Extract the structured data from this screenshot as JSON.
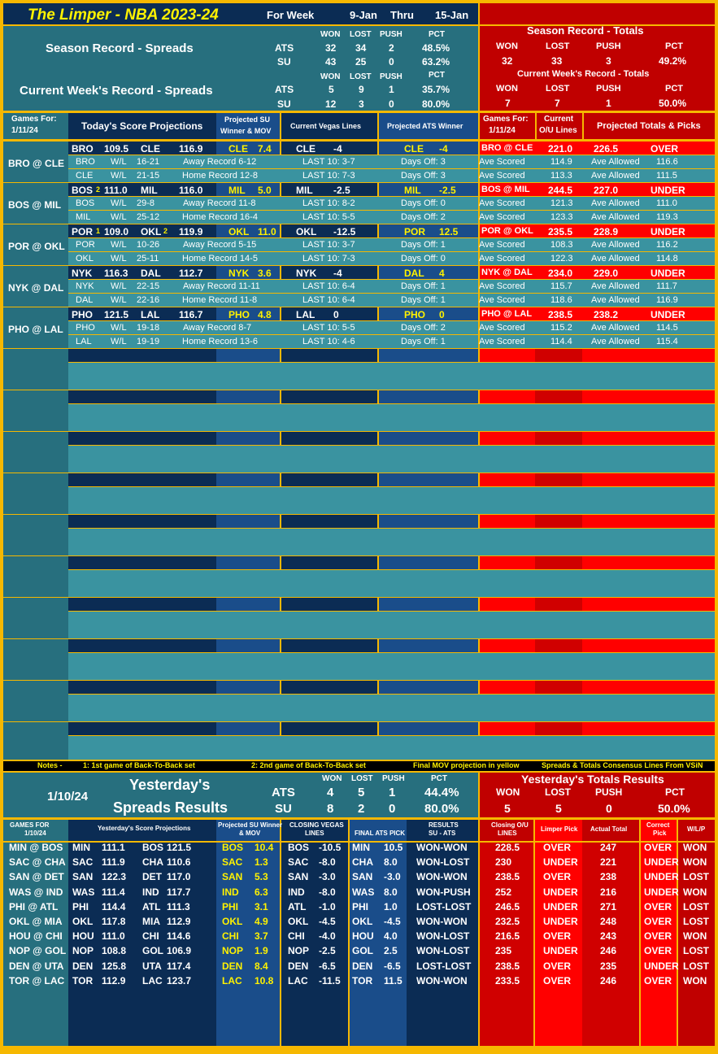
{
  "header": {
    "title": "The Limper - NBA 2023-24",
    "for_week": "For Week",
    "start": "9-Jan",
    "thru": "Thru",
    "end": "15-Jan"
  },
  "season": {
    "spreads_label": "Season Record - Spreads",
    "week_label": "Current Week's Record - Spreads",
    "cols": [
      "WON",
      "LOST",
      "PUSH",
      "PCT"
    ],
    "pct": "PCT",
    "ats": [
      "ATS",
      "32",
      "34",
      "2",
      "48.5%"
    ],
    "su": [
      "SU",
      "43",
      "25",
      "0",
      "63.2%"
    ],
    "week_ats": [
      "ATS",
      "5",
      "9",
      "1",
      "35.7%"
    ],
    "week_su": [
      "SU",
      "12",
      "3",
      "0",
      "80.0%"
    ],
    "totals_label": "Season Record - Totals",
    "totals_vals": [
      "32",
      "33",
      "3",
      "49.2%"
    ],
    "week_totals_label": "Current Week's Record - Totals",
    "week_totals_vals": [
      "7",
      "7",
      "1",
      "50.0%"
    ]
  },
  "today": {
    "games_for": "Games For:",
    "date": "1/11/24",
    "projections": "Today's Score Projections",
    "su_winner": "Projected SU Winner & MOV",
    "vegas": "Current Vegas Lines",
    "ats_winner": "Projected ATS Winner",
    "current_ou": "Current O/U Lines",
    "totals_picks": "Projected Totals & Picks"
  },
  "games": [
    {
      "label": "BRO @ CLE",
      "l1": [
        "BRO",
        "",
        "109.5",
        "CLE",
        "",
        "116.9"
      ],
      "su": [
        "CLE",
        "7.4"
      ],
      "line": [
        "CLE",
        "-4"
      ],
      "ats": [
        "CLE",
        "-4"
      ],
      "tot": [
        "BRO @ CLE",
        "221.0",
        "226.5",
        "OVER"
      ],
      "a": [
        "BRO",
        "W/L",
        "16-21",
        "Away Record 6-12",
        "LAST 10: 3-7",
        "Days Off: 3",
        "Ave Scored",
        "114.9",
        "Ave Allowed",
        "116.6"
      ],
      "b": [
        "CLE",
        "W/L",
        "21-15",
        "Home Record 12-8",
        "LAST 10: 7-3",
        "Days Off: 3",
        "Ave Scored",
        "113.3",
        "Ave Allowed",
        "111.5"
      ]
    },
    {
      "label": "BOS @ MIL",
      "l1": [
        "BOS",
        "2",
        "111.0",
        "MIL",
        "",
        "116.0"
      ],
      "su": [
        "MIL",
        "5.0"
      ],
      "line": [
        "MIL",
        "-2.5"
      ],
      "ats": [
        "MIL",
        "-2.5"
      ],
      "tot": [
        "BOS @ MIL",
        "244.5",
        "227.0",
        "UNDER"
      ],
      "a": [
        "BOS",
        "W/L",
        "29-8",
        "Away Record 11-8",
        "LAST 10: 8-2",
        "Days Off: 0",
        "Ave Scored",
        "121.3",
        "Ave Allowed",
        "111.0"
      ],
      "b": [
        "MIL",
        "W/L",
        "25-12",
        "Home Record 16-4",
        "LAST 10: 5-5",
        "Days Off: 2",
        "Ave Scored",
        "123.3",
        "Ave Allowed",
        "119.3"
      ]
    },
    {
      "label": "POR @ OKL",
      "l1": [
        "POR",
        "1",
        "109.0",
        "OKL",
        "2",
        "119.9"
      ],
      "su": [
        "OKL",
        "11.0"
      ],
      "line": [
        "OKL",
        "-12.5"
      ],
      "ats": [
        "POR",
        "12.5"
      ],
      "tot": [
        "POR @ OKL",
        "235.5",
        "228.9",
        "UNDER"
      ],
      "a": [
        "POR",
        "W/L",
        "10-26",
        "Away Record 5-15",
        "LAST 10: 3-7",
        "Days Off: 1",
        "Ave Scored",
        "108.3",
        "Ave Allowed",
        "116.2"
      ],
      "b": [
        "OKL",
        "W/L",
        "25-11",
        "Home Record 14-5",
        "LAST 10: 7-3",
        "Days Off: 0",
        "Ave Scored",
        "122.3",
        "Ave Allowed",
        "114.8"
      ]
    },
    {
      "label": "NYK @ DAL",
      "l1": [
        "NYK",
        "",
        "116.3",
        "DAL",
        "",
        "112.7"
      ],
      "su": [
        "NYK",
        "3.6"
      ],
      "line": [
        "NYK",
        "-4"
      ],
      "ats": [
        "DAL",
        "4"
      ],
      "tot": [
        "NYK @ DAL",
        "234.0",
        "229.0",
        "UNDER"
      ],
      "a": [
        "NYK",
        "W/L",
        "22-15",
        "Away Record 11-11",
        "LAST 10: 6-4",
        "Days Off: 1",
        "Ave Scored",
        "115.7",
        "Ave Allowed",
        "111.7"
      ],
      "b": [
        "DAL",
        "W/L",
        "22-16",
        "Home Record 11-8",
        "LAST 10: 6-4",
        "Days Off: 1",
        "Ave Scored",
        "118.6",
        "Ave Allowed",
        "116.9"
      ]
    },
    {
      "label": "PHO @ LAL",
      "l1": [
        "PHO",
        "",
        "121.5",
        "LAL",
        "",
        "116.7"
      ],
      "su": [
        "PHO",
        "4.8"
      ],
      "line": [
        "LAL",
        "0"
      ],
      "ats": [
        "PHO",
        "0"
      ],
      "tot": [
        "PHO @ LAL",
        "238.5",
        "238.2",
        "UNDER"
      ],
      "a": [
        "PHO",
        "W/L",
        "19-18",
        "Away Record 8-7",
        "LAST 10: 5-5",
        "Days Off: 2",
        "Ave Scored",
        "115.2",
        "Ave Allowed",
        "114.5"
      ],
      "b": [
        "LAL",
        "W/L",
        "19-19",
        "Home Record 13-6",
        "LAST 10: 4-6",
        "Days Off: 1",
        "Ave Scored",
        "114.4",
        "Ave Allowed",
        "115.4"
      ]
    }
  ],
  "notes": {
    "label": "Notes -",
    "n1": "1: 1st game of Back-To-Back set",
    "n2": "2: 2nd game of Back-To-Back set",
    "n3": "Final MOV projection in yellow",
    "n4": "Spreads & Totals Consensus Lines From VSiN"
  },
  "yesterday": {
    "date": "1/10/24",
    "title1": "Yesterday's",
    "title2": "Spreads Results",
    "cols": [
      "WON",
      "LOST",
      "PUSH",
      "PCT"
    ],
    "ats": [
      "ATS",
      "4",
      "5",
      "1",
      "44.4%"
    ],
    "su": [
      "SU",
      "8",
      "2",
      "0",
      "80.0%"
    ],
    "totals_title": "Yesterday's Totals Results",
    "totals_vals": [
      "5",
      "5",
      "0",
      "50.0%"
    ]
  },
  "yhead": {
    "games": "GAMES FOR 1/10/24",
    "proj": "Yesterday's Score Projections",
    "su": "Projected SU Winner & MOV",
    "closing": "CLOSING VEGAS LINES",
    "final": "FINAL ATS PICK",
    "results": "RESULTS SU - ATS",
    "ou": "Closing O/U LINES",
    "pick": "Limper Pick",
    "actual": "Actual Total",
    "correct": "Correct Pick",
    "wlp": "W/L/P"
  },
  "yrows": [
    [
      "MIN @ BOS",
      "MIN",
      "111.1",
      "BOS",
      "121.5",
      "BOS",
      "10.4",
      "BOS",
      "-10.5",
      "MIN",
      "10.5",
      "WON-WON",
      "228.5",
      "OVER",
      "247",
      "OVER",
      "WON"
    ],
    [
      "SAC @ CHA",
      "SAC",
      "111.9",
      "CHA",
      "110.6",
      "SAC",
      "1.3",
      "SAC",
      "-8.0",
      "CHA",
      "8.0",
      "WON-LOST",
      "230",
      "UNDER",
      "221",
      "UNDER",
      "WON"
    ],
    [
      "SAN @ DET",
      "SAN",
      "122.3",
      "DET",
      "117.0",
      "SAN",
      "5.3",
      "SAN",
      "-3.0",
      "SAN",
      "-3.0",
      "WON-WON",
      "238.5",
      "OVER",
      "238",
      "UNDER",
      "LOST"
    ],
    [
      "WAS @ IND",
      "WAS",
      "111.4",
      "IND",
      "117.7",
      "IND",
      "6.3",
      "IND",
      "-8.0",
      "WAS",
      "8.0",
      "WON-PUSH",
      "252",
      "UNDER",
      "216",
      "UNDER",
      "WON"
    ],
    [
      "PHI @ ATL",
      "PHI",
      "114.4",
      "ATL",
      "111.3",
      "PHI",
      "3.1",
      "ATL",
      "-1.0",
      "PHI",
      "1.0",
      "LOST-LOST",
      "246.5",
      "UNDER",
      "271",
      "OVER",
      "LOST"
    ],
    [
      "OKL @ MIA",
      "OKL",
      "117.8",
      "MIA",
      "112.9",
      "OKL",
      "4.9",
      "OKL",
      "-4.5",
      "OKL",
      "-4.5",
      "WON-WON",
      "232.5",
      "UNDER",
      "248",
      "OVER",
      "LOST"
    ],
    [
      "HOU @ CHI",
      "HOU",
      "111.0",
      "CHI",
      "114.6",
      "CHI",
      "3.7",
      "CHI",
      "-4.0",
      "HOU",
      "4.0",
      "WON-LOST",
      "216.5",
      "OVER",
      "243",
      "OVER",
      "WON"
    ],
    [
      "NOP @ GOL",
      "NOP",
      "108.8",
      "GOL",
      "106.9",
      "NOP",
      "1.9",
      "NOP",
      "-2.5",
      "GOL",
      "2.5",
      "WON-LOST",
      "235",
      "UNDER",
      "246",
      "OVER",
      "LOST"
    ],
    [
      "DEN @ UTA",
      "DEN",
      "125.8",
      "UTA",
      "117.4",
      "DEN",
      "8.4",
      "DEN",
      "-6.5",
      "DEN",
      "-6.5",
      "LOST-LOST",
      "238.5",
      "OVER",
      "235",
      "UNDER",
      "LOST"
    ],
    [
      "TOR @ LAC",
      "TOR",
      "112.9",
      "LAC",
      "123.7",
      "LAC",
      "10.8",
      "LAC",
      "-11.5",
      "TOR",
      "11.5",
      "WON-WON",
      "233.5",
      "OVER",
      "246",
      "OVER",
      "WON"
    ]
  ]
}
